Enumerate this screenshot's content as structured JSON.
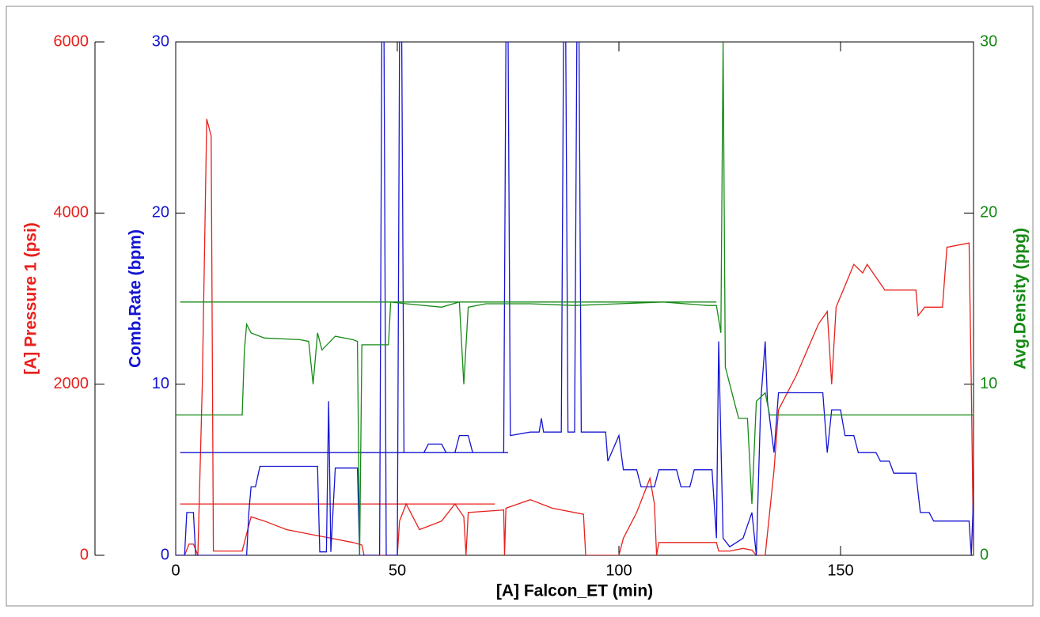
{
  "chart_data": {
    "type": "line",
    "x_label": "[A] Falcon_ET (min)",
    "xlim": [
      0,
      180
    ],
    "xticks": [
      0,
      50,
      100,
      150
    ],
    "ylim": [
      0,
      6000
    ],
    "yticks": [
      0,
      2000,
      4000,
      6000
    ],
    "y2lim": [
      0,
      30
    ],
    "y2ticks": [
      0,
      10,
      20,
      30
    ],
    "y3lim": [
      0,
      30
    ],
    "y3ticks": [
      0,
      10,
      20,
      30
    ],
    "series": [
      {
        "name": "[A] Pressure 1 (psi)",
        "color": "#e8201c",
        "axis": "y",
        "x": [
          0,
          2,
          3,
          4,
          5,
          6,
          7,
          8,
          8.5,
          15,
          16,
          17,
          20,
          25,
          30,
          35,
          40,
          42,
          42.5,
          50,
          50.5,
          52,
          55,
          60,
          63,
          65,
          65.5,
          66,
          74,
          74.2,
          74.5,
          80,
          85,
          92,
          92.5,
          100,
          101,
          104,
          107,
          108,
          108.5,
          109,
          122,
          122.5,
          125,
          128,
          130,
          131,
          133,
          134,
          135,
          136,
          140,
          145,
          147,
          148,
          149,
          153,
          155,
          156,
          160,
          167,
          167.5,
          169,
          173,
          174,
          179,
          179.5,
          180,
          null,
          1,
          72
        ],
        "values": [
          0,
          0,
          130,
          130,
          0,
          2000,
          5100,
          4900,
          50,
          50,
          250,
          450,
          400,
          300,
          250,
          200,
          150,
          120,
          0,
          0,
          400,
          600,
          300,
          400,
          600,
          450,
          0,
          500,
          530,
          0,
          550,
          650,
          550,
          480,
          0,
          0,
          200,
          500,
          900,
          600,
          0,
          150,
          150,
          50,
          50,
          80,
          60,
          0,
          0,
          500,
          1000,
          1700,
          2100,
          2700,
          2850,
          2000,
          2900,
          3400,
          3300,
          3400,
          3100,
          3100,
          2800,
          2900,
          2900,
          3600,
          3650,
          2000,
          0,
          null,
          600,
          600
        ]
      },
      {
        "name": "Comb.Rate (bpm)",
        "color": "#1414d2",
        "axis": "y2",
        "x": [
          0,
          2,
          2.5,
          4,
          4.5,
          16,
          16.5,
          17,
          18,
          19,
          32,
          32.5,
          34,
          34.5,
          35,
          36,
          41,
          41.5,
          46,
          46.5,
          47,
          47.5,
          50,
          50.5,
          51,
          51.5,
          56,
          57,
          60,
          61,
          63,
          64,
          66,
          67,
          74,
          74.5,
          75,
          75.5,
          80,
          82,
          82.5,
          83,
          87,
          87.5,
          88,
          88.5,
          90,
          90.5,
          91,
          91.5,
          97,
          97.5,
          100,
          101,
          104,
          105,
          108,
          109,
          113,
          114,
          116,
          117,
          121,
          122,
          122.5,
          123.5,
          125,
          128,
          130,
          131,
          132,
          133,
          133.5,
          135,
          136,
          146,
          147,
          148,
          150,
          151,
          153,
          154,
          158,
          159,
          161,
          162,
          167,
          168,
          170,
          171,
          179,
          179.5,
          180,
          null,
          1,
          75
        ],
        "values": [
          0,
          0,
          2.5,
          2.5,
          0,
          0,
          2.5,
          4,
          4,
          5.2,
          5.2,
          0.2,
          0.2,
          9,
          0.2,
          5.1,
          5.1,
          0,
          0,
          30,
          30,
          0,
          0,
          30,
          30,
          6,
          6,
          6.5,
          6.5,
          6,
          6,
          7,
          7,
          6,
          6,
          30,
          30,
          7,
          7.2,
          7.2,
          8,
          7.2,
          7.2,
          30,
          30,
          7.2,
          7.2,
          30,
          30,
          7.2,
          7.2,
          5.5,
          7,
          5,
          5,
          4,
          4,
          5,
          5,
          4,
          4,
          5,
          5,
          1,
          12.5,
          1,
          0.5,
          1,
          2.5,
          0,
          9,
          12.5,
          9,
          6,
          9.5,
          9.5,
          6,
          8.5,
          8.5,
          7,
          7,
          6,
          6,
          5.5,
          5.5,
          4.8,
          4.8,
          2.5,
          2.5,
          2,
          2,
          0,
          3.5,
          null,
          6,
          6
        ]
      },
      {
        "name": "Avg.Density (ppg)",
        "color": "#168a16",
        "axis": "y3",
        "x": [
          0,
          15,
          15.5,
          16,
          17,
          20,
          28,
          30,
          31,
          32,
          33,
          36,
          40,
          41,
          41.5,
          42,
          45,
          48,
          48.5,
          52,
          60,
          64,
          65,
          66,
          70,
          80,
          90,
          100,
          110,
          120,
          122,
          123,
          123.5,
          124,
          126,
          127,
          129,
          130,
          131,
          133,
          134,
          180,
          180.5,
          null,
          1,
          122
        ],
        "values": [
          8.2,
          8.2,
          12,
          13.5,
          13,
          12.7,
          12.6,
          12.5,
          10,
          13,
          12,
          12.8,
          12.6,
          12.5,
          0,
          12.3,
          12.3,
          12.3,
          14.8,
          14.7,
          14.5,
          14.8,
          10,
          14.5,
          14.7,
          14.7,
          14.6,
          14.7,
          14.8,
          14.6,
          14.6,
          13,
          30,
          11,
          9,
          8,
          8,
          3,
          9,
          9.5,
          8.2,
          8.2,
          9,
          null,
          14.8,
          14.8
        ]
      }
    ]
  }
}
